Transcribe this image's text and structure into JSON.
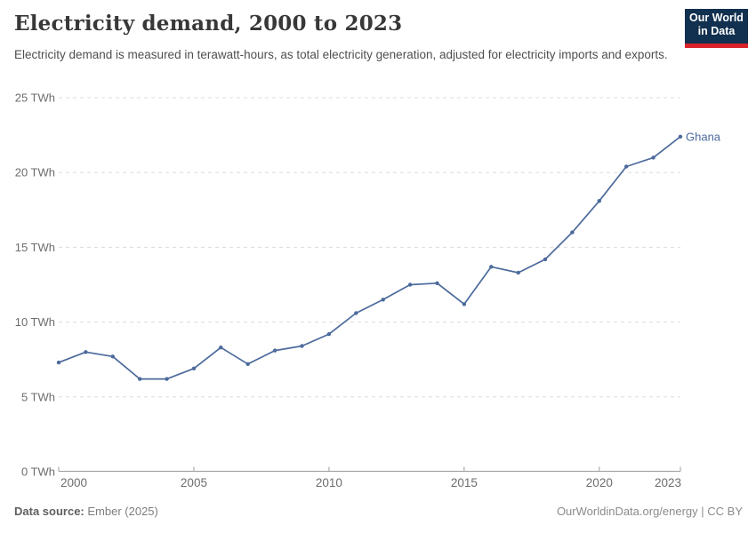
{
  "header": {
    "title": "Electricity demand, 2000 to 2023",
    "subtitle": "Electricity demand is measured in terawatt-hours, as total electricity generation, adjusted for electricity imports and exports.",
    "logo": {
      "line1": "Our World",
      "line2": "in Data"
    }
  },
  "chart_data": {
    "type": "line",
    "title": "Electricity demand, 2000 to 2023",
    "unit": "TWh",
    "xlabel": "",
    "ylabel": "",
    "xlim": [
      2000,
      2023
    ],
    "ylim": [
      0,
      25
    ],
    "grid": "horizontal-dashed",
    "legend": "end-of-line-label",
    "x": [
      2000,
      2001,
      2002,
      2003,
      2004,
      2005,
      2006,
      2007,
      2008,
      2009,
      2010,
      2011,
      2012,
      2013,
      2014,
      2015,
      2016,
      2017,
      2018,
      2019,
      2020,
      2021,
      2022,
      2023
    ],
    "series": [
      {
        "name": "Ghana",
        "color": "#4c6a9c",
        "values": [
          7.3,
          8.0,
          7.7,
          6.2,
          6.2,
          6.9,
          8.3,
          7.2,
          8.1,
          8.4,
          9.2,
          10.6,
          11.5,
          12.5,
          12.6,
          11.2,
          13.7,
          13.3,
          14.2,
          16.0,
          18.1,
          20.4,
          21.0,
          22.4
        ]
      }
    ],
    "yticks": [
      {
        "value": 0,
        "label": "0 TWh"
      },
      {
        "value": 5,
        "label": "5 TWh"
      },
      {
        "value": 10,
        "label": "10 TWh"
      },
      {
        "value": 15,
        "label": "15 TWh"
      },
      {
        "value": 20,
        "label": "20 TWh"
      },
      {
        "value": 25,
        "label": "25 TWh"
      }
    ],
    "xticks": [
      {
        "value": 2000,
        "label": "2000",
        "anchor": "start"
      },
      {
        "value": 2005,
        "label": "2005",
        "anchor": "middle"
      },
      {
        "value": 2010,
        "label": "2010",
        "anchor": "middle"
      },
      {
        "value": 2015,
        "label": "2015",
        "anchor": "middle"
      },
      {
        "value": 2020,
        "label": "2020",
        "anchor": "middle"
      },
      {
        "value": 2023,
        "label": "2023",
        "anchor": "end"
      }
    ],
    "colors": {
      "line": "#4c6a9c",
      "grid": "#dcdcdc",
      "axis": "#9c9c9c",
      "tick_label": "#6d6d6d"
    }
  },
  "footer": {
    "datasource_label": "Data source:",
    "datasource_value": "Ember (2025)",
    "credit": "OurWorldinData.org/energy | CC BY"
  }
}
